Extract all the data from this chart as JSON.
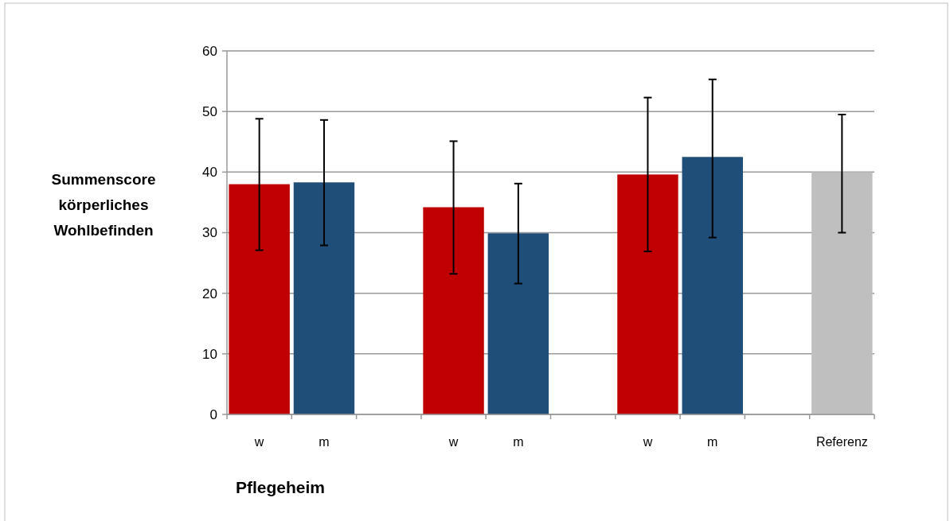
{
  "chart_data": {
    "type": "bar",
    "ylabel": "Summenscore körperliches Wohlbefinden",
    "xlabel": "Pflegeheim",
    "categories": [
      "w",
      "m",
      null,
      "w",
      "m",
      null,
      "w",
      "m",
      null,
      "Referenz"
    ],
    "values": [
      38.0,
      38.3,
      null,
      34.2,
      29.9,
      null,
      39.6,
      42.5,
      null,
      40.0
    ],
    "colors": [
      "#c00000",
      "#1f4e79",
      null,
      "#c00000",
      "#1f4e79",
      null,
      "#c00000",
      "#1f4e79",
      null,
      "#bfbfbf"
    ],
    "errors": [
      [
        27.1,
        48.8
      ],
      [
        27.9,
        48.6
      ],
      null,
      [
        23.2,
        45.1
      ],
      [
        21.6,
        38.1
      ],
      null,
      [
        26.9,
        52.3
      ],
      [
        29.2,
        55.3
      ],
      null,
      [
        30.0,
        49.5
      ]
    ],
    "ylim": [
      0,
      60
    ],
    "yticks": [
      0,
      10,
      20,
      30,
      40,
      50,
      60
    ],
    "grid": "y"
  }
}
